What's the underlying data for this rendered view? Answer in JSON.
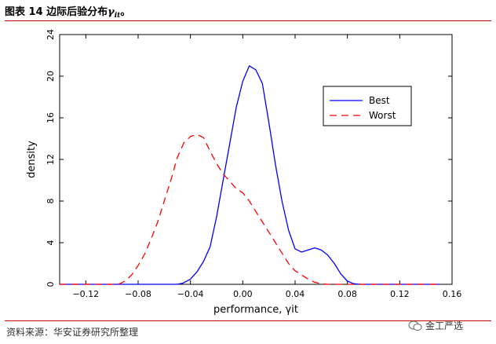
{
  "header": {
    "title_prefix": "图表 14 边际后验分布",
    "title_symbol": "γ",
    "title_subscript": "it",
    "title_suffix": "。"
  },
  "footer": {
    "source": "资料来源：华安证券研究所整理",
    "watermark": "金工严选"
  },
  "colors": {
    "best": "#0000ff",
    "worst": "#ff0000",
    "rule": "#c00000"
  },
  "chart_data": {
    "type": "line",
    "xlabel": "performance, γit",
    "ylabel": "density",
    "xlim": [
      -0.14,
      0.16
    ],
    "ylim": [
      0,
      24
    ],
    "xticks": [
      -0.12,
      -0.08,
      -0.04,
      0.0,
      0.04,
      0.08,
      0.12,
      0.16
    ],
    "xtick_labels": [
      "−0.12",
      "−0.08",
      "−0.04",
      "0.00",
      "0.04",
      "0.08",
      "0.12",
      "0.16"
    ],
    "yticks": [
      0,
      4,
      8,
      12,
      16,
      20,
      24
    ],
    "ytick_labels": [
      "0",
      "4",
      "8",
      "12",
      "16",
      "20",
      "24"
    ],
    "legend_position": "top-right",
    "series": [
      {
        "name": "Best",
        "style": "solid",
        "x": [
          -0.14,
          -0.05,
          -0.046,
          -0.04,
          -0.035,
          -0.03,
          -0.025,
          -0.02,
          -0.015,
          -0.01,
          -0.005,
          0.0,
          0.005,
          0.01,
          0.015,
          0.02,
          0.025,
          0.03,
          0.035,
          0.04,
          0.045,
          0.05,
          0.055,
          0.06,
          0.065,
          0.07,
          0.075,
          0.08,
          0.085,
          0.09,
          0.15
        ],
        "y": [
          0,
          0,
          0.1,
          0.5,
          1.2,
          2.2,
          3.6,
          6.5,
          10.0,
          13.5,
          17.0,
          19.5,
          21.0,
          20.6,
          19.3,
          15.5,
          11.5,
          8.0,
          5.2,
          3.4,
          3.1,
          3.3,
          3.5,
          3.3,
          2.8,
          2.0,
          1.0,
          0.3,
          0.05,
          0,
          0
        ]
      },
      {
        "name": "Worst",
        "style": "dashed",
        "x": [
          -0.14,
          -0.095,
          -0.09,
          -0.085,
          -0.08,
          -0.075,
          -0.07,
          -0.065,
          -0.06,
          -0.055,
          -0.05,
          -0.045,
          -0.04,
          -0.035,
          -0.03,
          -0.025,
          -0.02,
          -0.015,
          -0.01,
          -0.005,
          0.0,
          0.005,
          0.01,
          0.015,
          0.02,
          0.025,
          0.03,
          0.035,
          0.04,
          0.045,
          0.05,
          0.055,
          0.06,
          0.065,
          0.15
        ],
        "y": [
          0,
          0,
          0.3,
          0.9,
          1.8,
          2.9,
          4.4,
          6.0,
          8.0,
          10.0,
          12.2,
          13.6,
          14.2,
          14.4,
          14.1,
          12.8,
          11.6,
          10.6,
          9.9,
          9.2,
          8.8,
          8.0,
          7.0,
          6.0,
          5.0,
          4.0,
          3.0,
          2.0,
          1.3,
          0.9,
          0.5,
          0.2,
          0.05,
          0,
          0
        ]
      }
    ]
  }
}
